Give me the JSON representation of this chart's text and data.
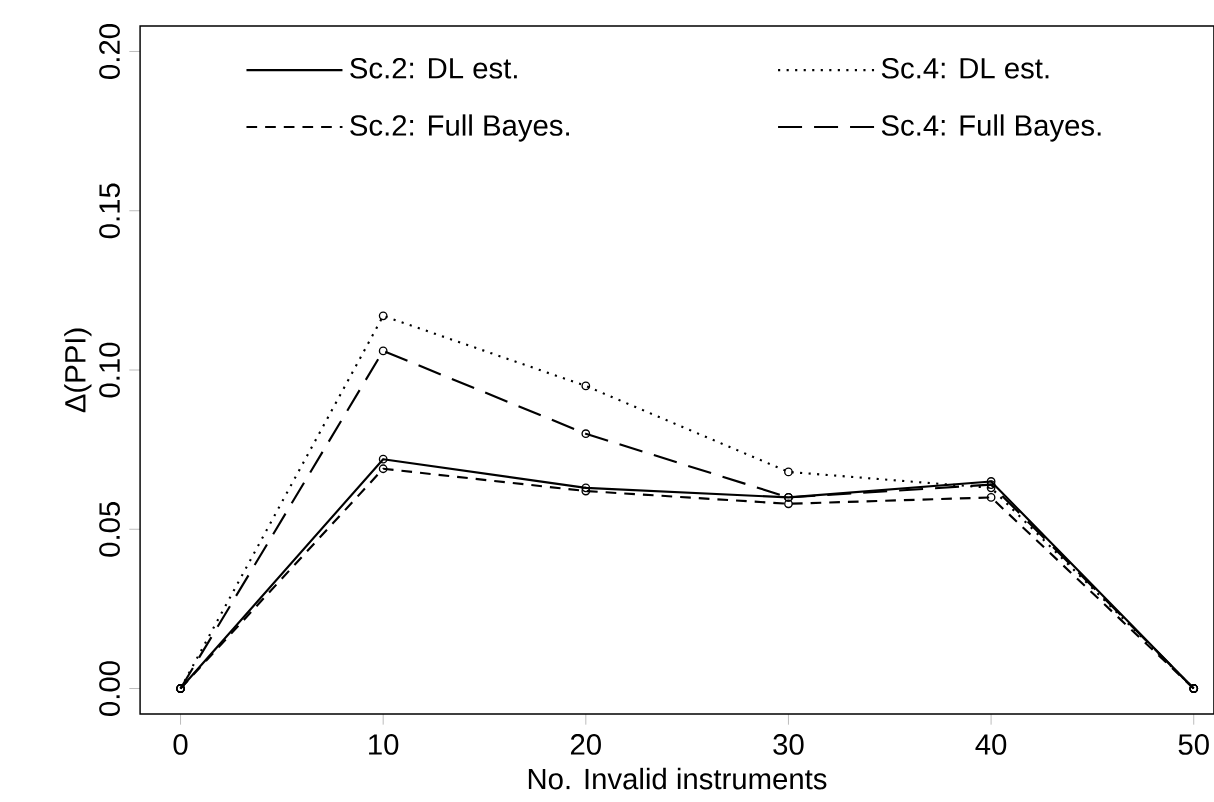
{
  "chart_data": {
    "type": "line",
    "xlabel": "No. Invalid instruments",
    "ylabel": "Δ(PPI)",
    "x": [
      0,
      10,
      20,
      30,
      40,
      50
    ],
    "series": [
      {
        "name": "Sc.2: DL est.",
        "color": "#000000",
        "line_style": "solid",
        "values": [
          0,
          0.072,
          0.063,
          0.06,
          0.065,
          0
        ]
      },
      {
        "name": "Sc.2: Full Bayes.",
        "color": "#000000",
        "line_style": "dashed",
        "values": [
          0,
          0.069,
          0.062,
          0.058,
          0.06,
          0
        ]
      },
      {
        "name": "Sc.4: DL est.",
        "color": "#000000",
        "line_style": "dotted",
        "values": [
          0,
          0.117,
          0.095,
          0.068,
          0.063,
          0
        ]
      },
      {
        "name": "Sc.4: Full Bayes.",
        "color": "#000000",
        "line_style": "longdashed",
        "values": [
          0,
          0.106,
          0.08,
          0.06,
          0.064,
          0
        ]
      }
    ],
    "xlim": [
      -2,
      51
    ],
    "ylim": [
      -0.008,
      0.208
    ],
    "xticks": [
      0,
      10,
      20,
      30,
      40,
      50
    ],
    "yticks": [
      {
        "value": 0,
        "label": "0.00"
      },
      {
        "value": 0.05,
        "label": "0.05"
      },
      {
        "value": 0.1,
        "label": "0.10"
      },
      {
        "value": 0.15,
        "label": "0.15"
      },
      {
        "value": 0.2,
        "label": "0.20"
      }
    ],
    "marker": "circle",
    "legend": "top",
    "grid": false
  }
}
